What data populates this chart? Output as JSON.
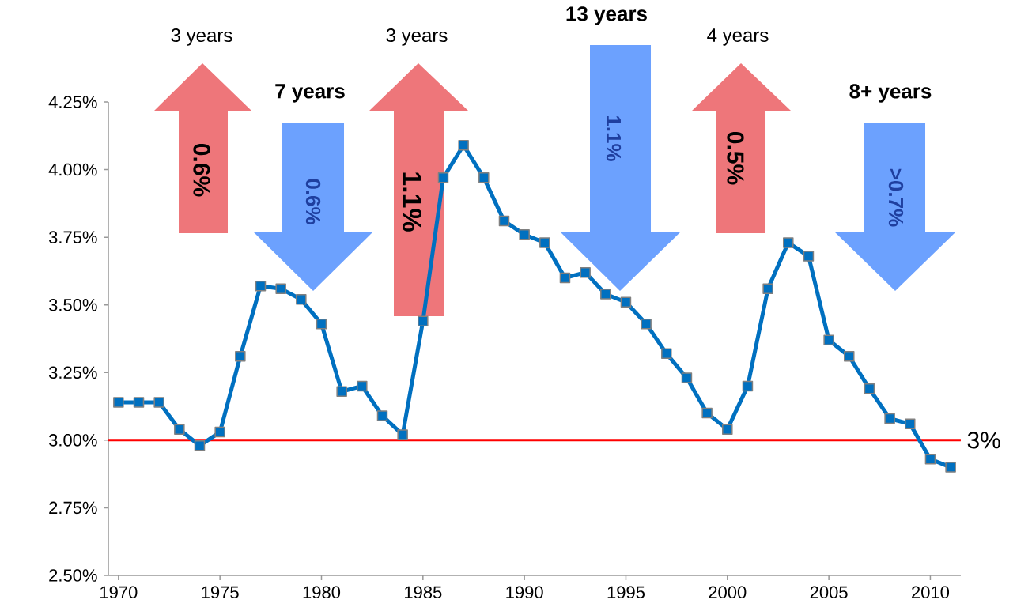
{
  "chart_data": {
    "type": "line",
    "x": [
      1970,
      1971,
      1972,
      1973,
      1974,
      1975,
      1976,
      1977,
      1978,
      1979,
      1980,
      1981,
      1982,
      1983,
      1984,
      1985,
      1986,
      1987,
      1988,
      1989,
      1990,
      1991,
      1992,
      1993,
      1994,
      1995,
      1996,
      1997,
      1998,
      1999,
      2000,
      2001,
      2002,
      2003,
      2004,
      2005,
      2006,
      2007,
      2008,
      2009,
      2010,
      2011
    ],
    "series": [
      {
        "color": "#0070c0",
        "values": [
          3.14,
          3.14,
          3.14,
          3.04,
          2.98,
          3.03,
          3.31,
          3.57,
          3.56,
          3.52,
          3.43,
          3.18,
          3.2,
          3.09,
          3.02,
          3.44,
          3.97,
          4.09,
          3.97,
          3.81,
          3.76,
          3.73,
          3.6,
          3.62,
          3.54,
          3.51,
          3.43,
          3.32,
          3.23,
          3.1,
          3.04,
          3.2,
          3.56,
          3.73,
          3.68,
          3.37,
          3.31,
          3.19,
          3.08,
          3.06,
          2.93,
          2.9
        ]
      }
    ],
    "marker": "square",
    "line_style": "solid",
    "xlim": [
      1969.5,
      2011.5
    ],
    "xticks": [
      1970,
      1975,
      1980,
      1985,
      1990,
      1995,
      2000,
      2005,
      2010
    ],
    "ylim": [
      2.5,
      4.25
    ],
    "yticks": [
      {
        "value": 2.5,
        "label": "2.50%"
      },
      {
        "value": 2.75,
        "label": "2.75%"
      },
      {
        "value": 3.0,
        "label": "3.00%"
      },
      {
        "value": 3.25,
        "label": "3.25%"
      },
      {
        "value": 3.5,
        "label": "3.50%"
      },
      {
        "value": 3.75,
        "label": "3.75%"
      },
      {
        "value": 4.0,
        "label": "4.00%"
      },
      {
        "value": 4.25,
        "label": "4.25%"
      }
    ],
    "ref_lines": [
      {
        "axis": "y",
        "value": 3,
        "label": "3%",
        "color": "#ff0000",
        "line_style": "solid"
      }
    ],
    "annotations": [
      "3 years",
      "0.6%",
      "7 years",
      "0.6%",
      "3 years",
      "1.1%",
      "13 years",
      "1.1%",
      "4 years",
      "0.5%",
      "8+ years",
      ">0.7%"
    ]
  }
}
